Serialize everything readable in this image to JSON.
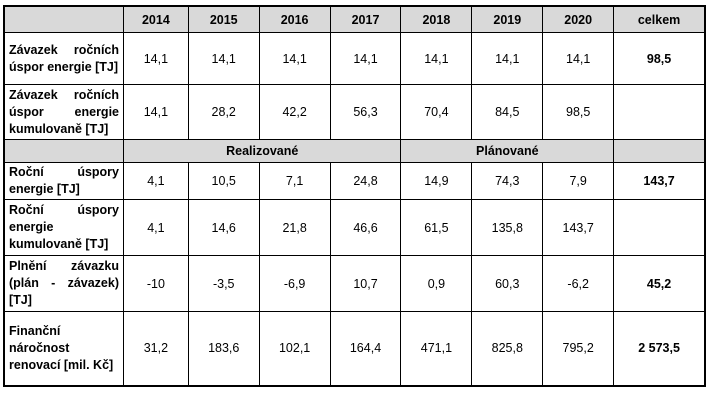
{
  "header": {
    "years": [
      "2014",
      "2015",
      "2016",
      "2017",
      "2018",
      "2019",
      "2020"
    ],
    "total_label": "celkem"
  },
  "rows": [
    {
      "label": "Závazek ročních úspor energie [TJ]",
      "values": [
        "14,1",
        "14,1",
        "14,1",
        "14,1",
        "14,1",
        "14,1",
        "14,1"
      ],
      "total": "98,5"
    },
    {
      "label": "Závazek ročních úspor energie kumulovaně [TJ]",
      "values": [
        "14,1",
        "28,2",
        "42,2",
        "56,3",
        "70,4",
        "84,5",
        "98,5"
      ],
      "total": ""
    }
  ],
  "sections": {
    "realized": "Realizované",
    "planned": "Plánované"
  },
  "rows2": [
    {
      "label": "Roční úspory energie [TJ]",
      "values": [
        "4,1",
        "10,5",
        "7,1",
        "24,8",
        "14,9",
        "74,3",
        "7,9"
      ],
      "total": "143,7"
    },
    {
      "label": "Roční úspory energie kumulovaně [TJ]",
      "values": [
        "4,1",
        "14,6",
        "21,8",
        "46,6",
        "61,5",
        "135,8",
        "143,7"
      ],
      "total": ""
    },
    {
      "label": "Plnění závazku (plán - závazek) [TJ]",
      "values": [
        "-10",
        "-3,5",
        "-6,9",
        "10,7",
        "0,9",
        "60,3",
        "-6,2"
      ],
      "total": "45,2"
    },
    {
      "label": "Finanční náročnost renovací [mil. Kč]",
      "values": [
        "31,2",
        "183,6",
        "102,1",
        "164,4",
        "471,1",
        "825,8",
        "795,2"
      ],
      "total": "2 573,5"
    }
  ]
}
